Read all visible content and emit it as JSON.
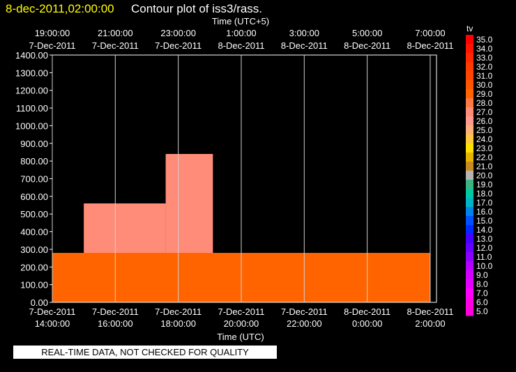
{
  "header": {
    "date": "8-dec-2011,02:00:00",
    "title": "Contour plot of iss3/rass."
  },
  "banner": "REAL-TIME DATA, NOT CHECKED FOR QUALITY",
  "chart_data": {
    "type": "heatmap",
    "top_axis_label": "Time (UTC+5)",
    "top_ticks": [
      {
        "time": "19:00:00",
        "date": "7-Dec-2011"
      },
      {
        "time": "21:00:00",
        "date": "7-Dec-2011"
      },
      {
        "time": "23:00:00",
        "date": "7-Dec-2011"
      },
      {
        "time": "1:00:00",
        "date": "8-Dec-2011"
      },
      {
        "time": "3:00:00",
        "date": "8-Dec-2011"
      },
      {
        "time": "5:00:00",
        "date": "8-Dec-2011"
      },
      {
        "time": "7:00:00",
        "date": "8-Dec-2011"
      }
    ],
    "xlabel": "Time (UTC)",
    "bottom_ticks": [
      {
        "date": "7-Dec-2011",
        "time": "14:00:00"
      },
      {
        "date": "7-Dec-2011",
        "time": "16:00:00"
      },
      {
        "date": "7-Dec-2011",
        "time": "18:00:00"
      },
      {
        "date": "7-Dec-2011",
        "time": "20:00:00"
      },
      {
        "date": "7-Dec-2011",
        "time": "22:00:00"
      },
      {
        "date": "8-Dec-2011",
        "time": "0:00:00"
      },
      {
        "date": "8-Dec-2011",
        "time": "2:00:00"
      }
    ],
    "y_ticks": [
      "0.00",
      "100.00",
      "200.00",
      "300.00",
      "400.00",
      "500.00",
      "600.00",
      "700.00",
      "800.00",
      "900.00",
      "1000.00",
      "1100.00",
      "1200.00",
      "1300.00",
      "1400.00"
    ],
    "ylim": [
      0,
      1400
    ],
    "x_hours": [
      14,
      26.2
    ],
    "colorbar": {
      "title": "tv",
      "labels": [
        "35.0",
        "34.0",
        "33.0",
        "32.0",
        "31.0",
        "30.0",
        "29.0",
        "28.0",
        "27.0",
        "26.0",
        "25.0",
        "24.0",
        "23.0",
        "22.0",
        "21.0",
        "20.0",
        "19.0",
        "18.0",
        "17.0",
        "16.0",
        "15.0",
        "14.0",
        "13.0",
        "12.0",
        "11.0",
        "10.0",
        "9.0",
        "8.0",
        "7.0",
        "6.0",
        "5.0"
      ],
      "colors": [
        "#ff0000",
        "#ff1400",
        "#ff2800",
        "#ff3c00",
        "#ff4600",
        "#ff5500",
        "#ff6400",
        "#ff7846",
        "#ff8c78",
        "#ff9a8c",
        "#ffb07a",
        "#ffc83c",
        "#ffe000",
        "#e6b400",
        "#c88c1e",
        "#b4b4b4",
        "#3cb482",
        "#00c8a0",
        "#00b4c8",
        "#0082e6",
        "#0050ff",
        "#0028ff",
        "#4600ff",
        "#6400ff",
        "#8c00ff",
        "#b400ff",
        "#d200ff",
        "#e600ff",
        "#ff00ff",
        "#ff00e6",
        "#ff00dc"
      ]
    },
    "regions": [
      {
        "t0": 14.0,
        "t1": 26.0,
        "h0": 0,
        "h1": 280,
        "value": 29.5
      },
      {
        "t0": 15.0,
        "t1": 17.6,
        "h0": 280,
        "h1": 560,
        "value": 27.5
      },
      {
        "t0": 17.6,
        "t1": 19.1,
        "h0": 280,
        "h1": 840,
        "value": 27.0
      }
    ]
  }
}
